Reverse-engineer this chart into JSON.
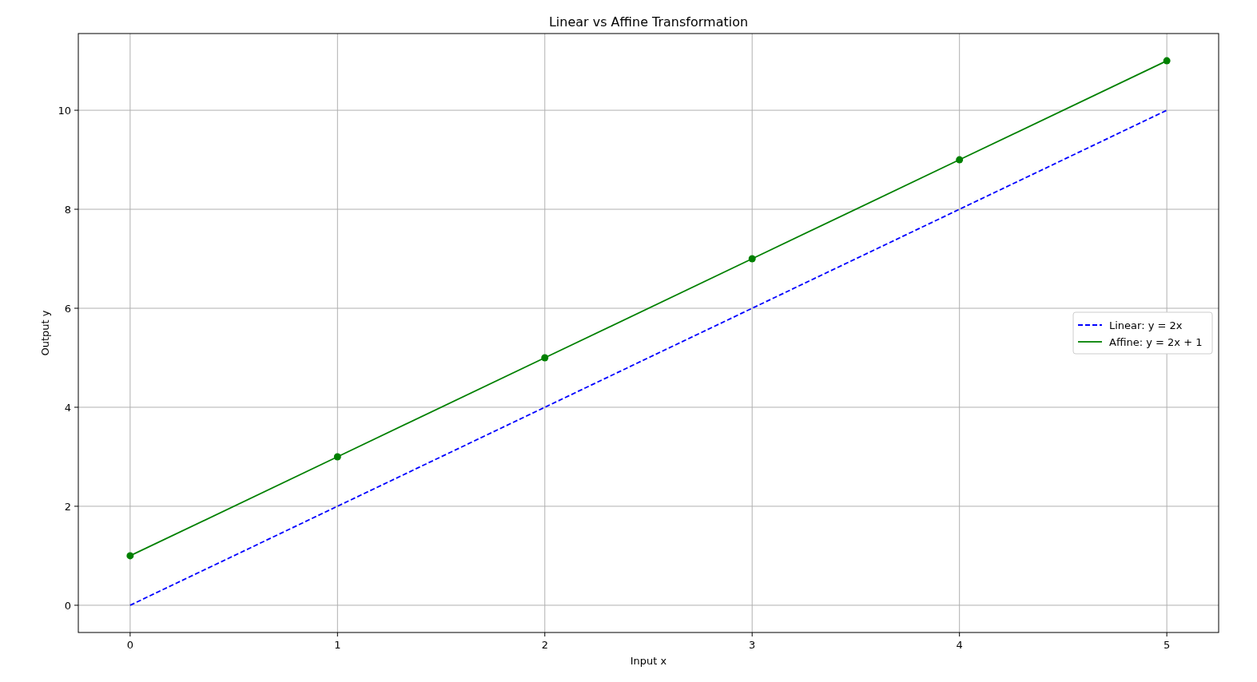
{
  "chart_data": {
    "type": "line",
    "title": "Linear vs Affine Transformation",
    "xlabel": "Input x",
    "ylabel": "Output y",
    "x": [
      0,
      1,
      2,
      3,
      4,
      5
    ],
    "series": [
      {
        "name": "Linear: y = 2x",
        "color": "#0000ff",
        "values": [
          0,
          2,
          4,
          6,
          8,
          10
        ],
        "line_style": "dashed",
        "marker": "none"
      },
      {
        "name": "Affine: y = 2x + 1",
        "color": "#008000",
        "values": [
          1,
          3,
          5,
          7,
          9,
          11
        ],
        "line_style": "solid",
        "marker": "circle"
      }
    ],
    "xlim": [
      -0.25,
      5.25
    ],
    "xticks": [
      0,
      1,
      2,
      3,
      4,
      5
    ],
    "ylim": [
      -0.55,
      11.55
    ],
    "yticks": [
      0,
      2,
      4,
      6,
      8,
      10
    ],
    "grid": true,
    "legend": "center right"
  }
}
